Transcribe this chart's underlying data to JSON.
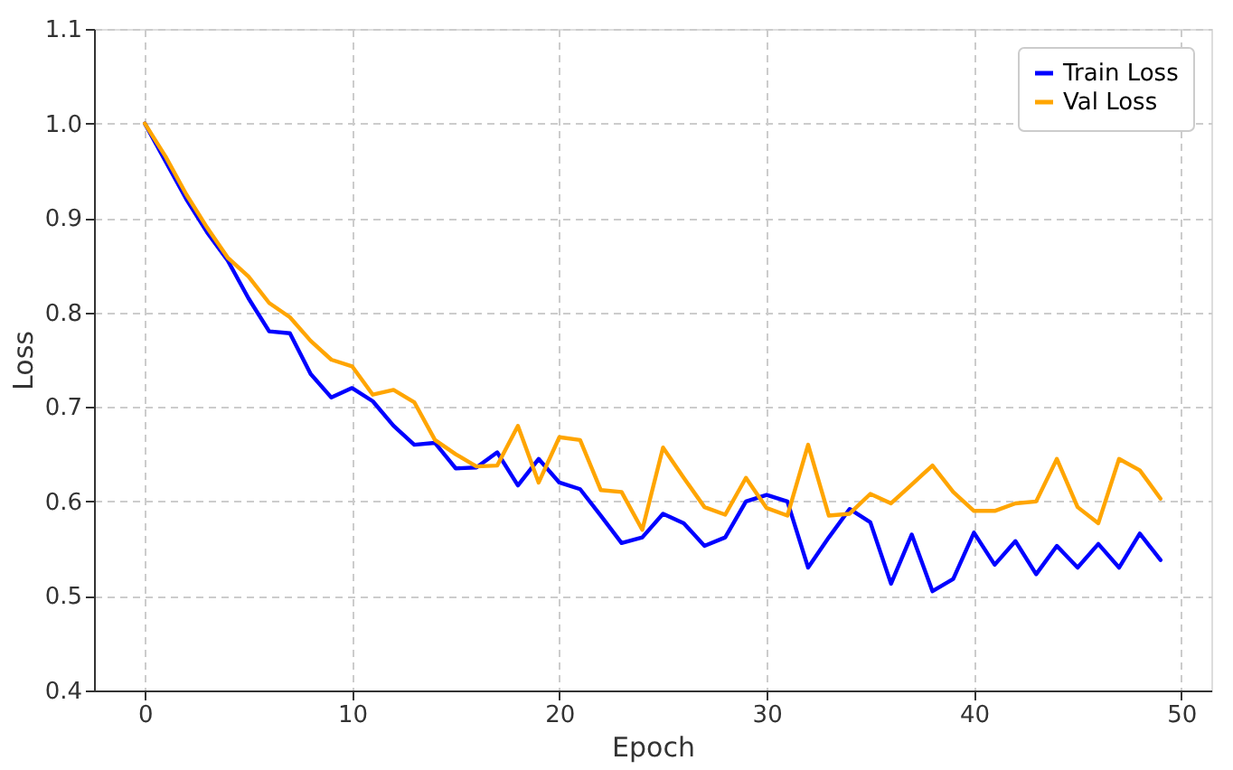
{
  "chart_data": {
    "type": "line",
    "xlabel": "Epoch",
    "ylabel": "Loss",
    "x": [
      0,
      1,
      2,
      3,
      4,
      5,
      6,
      7,
      8,
      9,
      10,
      11,
      12,
      13,
      14,
      15,
      16,
      17,
      18,
      19,
      20,
      21,
      22,
      23,
      24,
      25,
      26,
      27,
      28,
      29,
      30,
      31,
      32,
      33,
      34,
      35,
      36,
      37,
      38,
      39,
      40,
      41,
      42,
      43,
      44,
      45,
      46,
      47,
      48,
      49
    ],
    "series": [
      {
        "name": "Train Loss",
        "color": "#0000ff",
        "values": [
          1.0,
          0.96,
          0.92,
          0.885,
          0.855,
          0.815,
          0.78,
          0.778,
          0.735,
          0.71,
          0.72,
          0.706,
          0.68,
          0.66,
          0.662,
          0.635,
          0.636,
          0.652,
          0.617,
          0.645,
          0.62,
          0.613,
          0.585,
          0.556,
          0.562,
          0.587,
          0.577,
          0.553,
          0.562,
          0.6,
          0.607,
          0.6,
          0.53,
          0.562,
          0.592,
          0.578,
          0.513,
          0.565,
          0.505,
          0.518,
          0.567,
          0.533,
          0.558,
          0.523,
          0.553,
          0.53,
          0.555,
          0.53,
          0.566,
          0.538
        ]
      },
      {
        "name": "Val Loss",
        "color": "#ffa500",
        "values": [
          1.0,
          0.965,
          0.925,
          0.89,
          0.858,
          0.838,
          0.81,
          0.795,
          0.77,
          0.75,
          0.743,
          0.713,
          0.718,
          0.705,
          0.665,
          0.65,
          0.637,
          0.638,
          0.68,
          0.62,
          0.668,
          0.665,
          0.612,
          0.61,
          0.57,
          0.657,
          0.625,
          0.594,
          0.586,
          0.625,
          0.593,
          0.585,
          0.66,
          0.585,
          0.587,
          0.608,
          0.598,
          0.618,
          0.638,
          0.61,
          0.59,
          0.59,
          0.598,
          0.6,
          0.645,
          0.594,
          0.577,
          0.645,
          0.633,
          0.603
        ]
      }
    ],
    "xlim": [
      -2.45,
      51.45
    ],
    "xticks": [
      0,
      10,
      20,
      30,
      40,
      50
    ],
    "ylim": [
      0.4,
      1.1
    ],
    "yticks": [
      0.4,
      0.5,
      0.6,
      0.7,
      0.8,
      0.9,
      {
        "value": 1.0,
        "label": "1.0"
      },
      1.1
    ],
    "grid": true,
    "legend": "top right",
    "line_style": "solid",
    "marker": "none"
  }
}
